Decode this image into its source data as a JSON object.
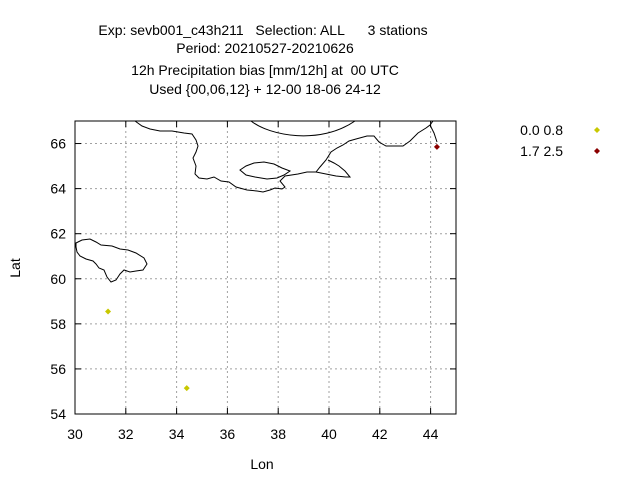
{
  "chart_data": {
    "type": "scatter",
    "title_lines": [
      "Exp: sevb001_c43h211   Selection: ALL      3 stations",
      "Period: 20210527-20210626",
      "12h Precipitation bias [mm/12h] at  00 UTC",
      "Used {00,06,12} + 12-00 18-06 24-12"
    ],
    "xlabel": "Lon",
    "ylabel": "Lat",
    "xlim": [
      30,
      45
    ],
    "ylim": [
      54,
      67
    ],
    "xticks": [
      "30",
      "32",
      "34",
      "36",
      "38",
      "40",
      "42",
      "44"
    ],
    "yticks": [
      "54",
      "56",
      "58",
      "60",
      "62",
      "64",
      "66"
    ],
    "grid": true,
    "legend_position": "right",
    "series": [
      {
        "name": "0.0 0.8",
        "color": "#c8c800",
        "points": [
          {
            "x": 31.3,
            "y": 58.55
          },
          {
            "x": 34.4,
            "y": 55.15
          }
        ]
      },
      {
        "name": "1.7 2.5",
        "color": "#8b0000",
        "points": [
          {
            "x": 44.25,
            "y": 65.85
          }
        ]
      }
    ]
  }
}
